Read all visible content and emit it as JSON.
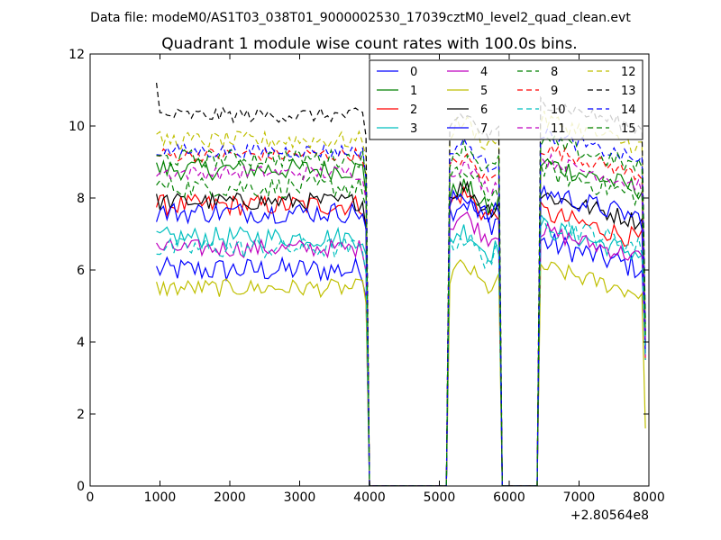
{
  "chart_data": {
    "type": "line",
    "suptitle": "Data file: modeM0/AS1T03_038T01_9000002530_17039cztM0_level2_quad_clean.evt",
    "title": "Quadrant 1 module wise count rates with 100.0s bins.",
    "xlabel": "",
    "ylabel": "",
    "xlim": [
      0,
      8000
    ],
    "ylim": [
      0,
      12
    ],
    "x_ticks": [
      0,
      1000,
      2000,
      3000,
      4000,
      5000,
      6000,
      7000,
      8000
    ],
    "x_tick_labels": [
      "0",
      "1000",
      "2000",
      "3000",
      "4000",
      "5000",
      "6000",
      "7000",
      "8000"
    ],
    "y_ticks": [
      0,
      2,
      4,
      6,
      8,
      10,
      12
    ],
    "y_tick_labels": [
      "0",
      "2",
      "4",
      "6",
      "8",
      "10",
      "12"
    ],
    "x_offset_label": "+2.80564e8",
    "grid": false,
    "legend_position": "top-right",
    "legend_columns": 4,
    "segments": [
      {
        "x_start": 950,
        "x_end": 3950,
        "step": 50
      },
      {
        "x_start": 5150,
        "x_end": 5850,
        "step": 50
      },
      {
        "x_start": 6450,
        "x_end": 7950,
        "step": 50
      }
    ],
    "x_end": 7950,
    "series": [
      {
        "name": "0",
        "color": "#0000ff",
        "dash": "solid",
        "seg_levels": [
          6.0,
          7.6,
          6.2
        ],
        "wiggle": 0.35,
        "end_value": 4.0
      },
      {
        "name": "1",
        "color": "#008000",
        "dash": "solid",
        "seg_levels": [
          8.8,
          8.0,
          8.4
        ],
        "wiggle": 0.3,
        "end_value": 4.5
      },
      {
        "name": "2",
        "color": "#ff0000",
        "dash": "solid",
        "seg_levels": [
          7.8,
          7.8,
          7.0
        ],
        "wiggle": 0.3,
        "end_value": 3.5
      },
      {
        "name": "3",
        "color": "#00bfbf",
        "dash": "solid",
        "seg_levels": [
          6.9,
          6.8,
          6.6
        ],
        "wiggle": 0.3,
        "end_value": 3.8
      },
      {
        "name": "4",
        "color": "#bf00bf",
        "dash": "solid",
        "seg_levels": [
          6.6,
          7.2,
          6.5
        ],
        "wiggle": 0.25,
        "end_value": 3.6
      },
      {
        "name": "5",
        "color": "#bfbf00",
        "dash": "solid",
        "seg_levels": [
          5.5,
          5.8,
          5.5
        ],
        "wiggle": 0.25,
        "end_value": 1.6
      },
      {
        "name": "6",
        "color": "#000000",
        "dash": "solid",
        "seg_levels": [
          7.9,
          8.0,
          7.5
        ],
        "wiggle": 0.25,
        "end_value": 3.9
      },
      {
        "name": "7",
        "color": "#0000ff",
        "dash": "solid",
        "seg_levels": [
          7.6,
          7.8,
          7.6
        ],
        "wiggle": 0.3,
        "end_value": 3.7
      },
      {
        "name": "8",
        "color": "#008000",
        "dash": "dashed",
        "seg_levels": [
          8.3,
          8.4,
          8.2
        ],
        "wiggle": 0.3,
        "end_value": 4.2
      },
      {
        "name": "9",
        "color": "#ff0000",
        "dash": "dashed",
        "seg_levels": [
          9.2,
          8.8,
          8.8
        ],
        "wiggle": 0.2,
        "end_value": 4.3
      },
      {
        "name": "10",
        "color": "#00bfbf",
        "dash": "dashed",
        "seg_levels": [
          6.6,
          6.6,
          6.8
        ],
        "wiggle": 0.3,
        "end_value": 3.5
      },
      {
        "name": "11",
        "color": "#bf00bf",
        "dash": "dashed",
        "seg_levels": [
          8.7,
          8.6,
          8.5
        ],
        "wiggle": 0.2,
        "end_value": 4.1
      },
      {
        "name": "12",
        "color": "#bfbf00",
        "dash": "dashed",
        "seg_levels": [
          9.6,
          9.8,
          9.6
        ],
        "wiggle": 0.25,
        "end_value": 4.4
      },
      {
        "name": "13",
        "color": "#000000",
        "dash": "dashed",
        "seg_levels": [
          10.3,
          10.0,
          10.1
        ],
        "wiggle": 0.2,
        "end_value": 4.6
      },
      {
        "name": "14",
        "color": "#0000ff",
        "dash": "dashed",
        "seg_levels": [
          9.3,
          9.2,
          9.2
        ],
        "wiggle": 0.2,
        "end_value": 4.3
      },
      {
        "name": "15",
        "color": "#008000",
        "dash": "dashed",
        "seg_levels": [
          9.1,
          9.1,
          9.0
        ],
        "wiggle": 0.25,
        "end_value": 4.2
      }
    ]
  }
}
